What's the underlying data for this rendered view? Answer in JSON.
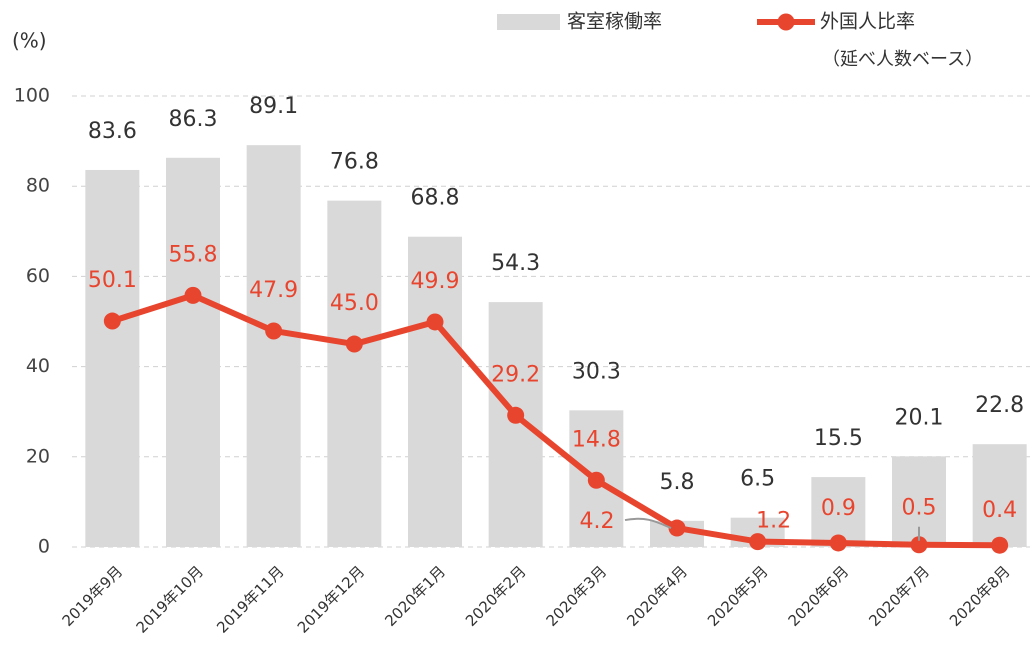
{
  "chart_data": {
    "type": "combo",
    "y_label": "(%)",
    "note": "（延べ人数ベース）",
    "categories": [
      "2019年9月",
      "2019年10月",
      "2019年11月",
      "2019年12月",
      "2020年1月",
      "2020年2月",
      "2020年3月",
      "2020年4月",
      "2020年5月",
      "2020年6月",
      "2020年7月",
      "2020年8月"
    ],
    "series": [
      {
        "name": "客室稼働率",
        "type": "bar",
        "color": "#d9d9d9",
        "values": [
          83.6,
          86.3,
          89.1,
          76.8,
          68.8,
          54.3,
          30.3,
          5.8,
          6.5,
          15.5,
          20.1,
          22.8
        ]
      },
      {
        "name": "外国人比率",
        "type": "line",
        "color": "#e8452f",
        "values": [
          50.1,
          55.8,
          47.9,
          45.0,
          49.9,
          29.2,
          14.8,
          4.2,
          1.2,
          0.9,
          0.5,
          0.4
        ],
        "value_labels": [
          "50.1",
          "55.8",
          "47.9",
          "45.0",
          "49.9",
          "29.2",
          "14.8",
          "4.2",
          "1.2",
          "0.9",
          "0.5",
          "0.4"
        ]
      }
    ],
    "ylim": [
      0,
      100
    ],
    "yticks": [
      0,
      20,
      40,
      60,
      80,
      100
    ],
    "grid": true
  }
}
